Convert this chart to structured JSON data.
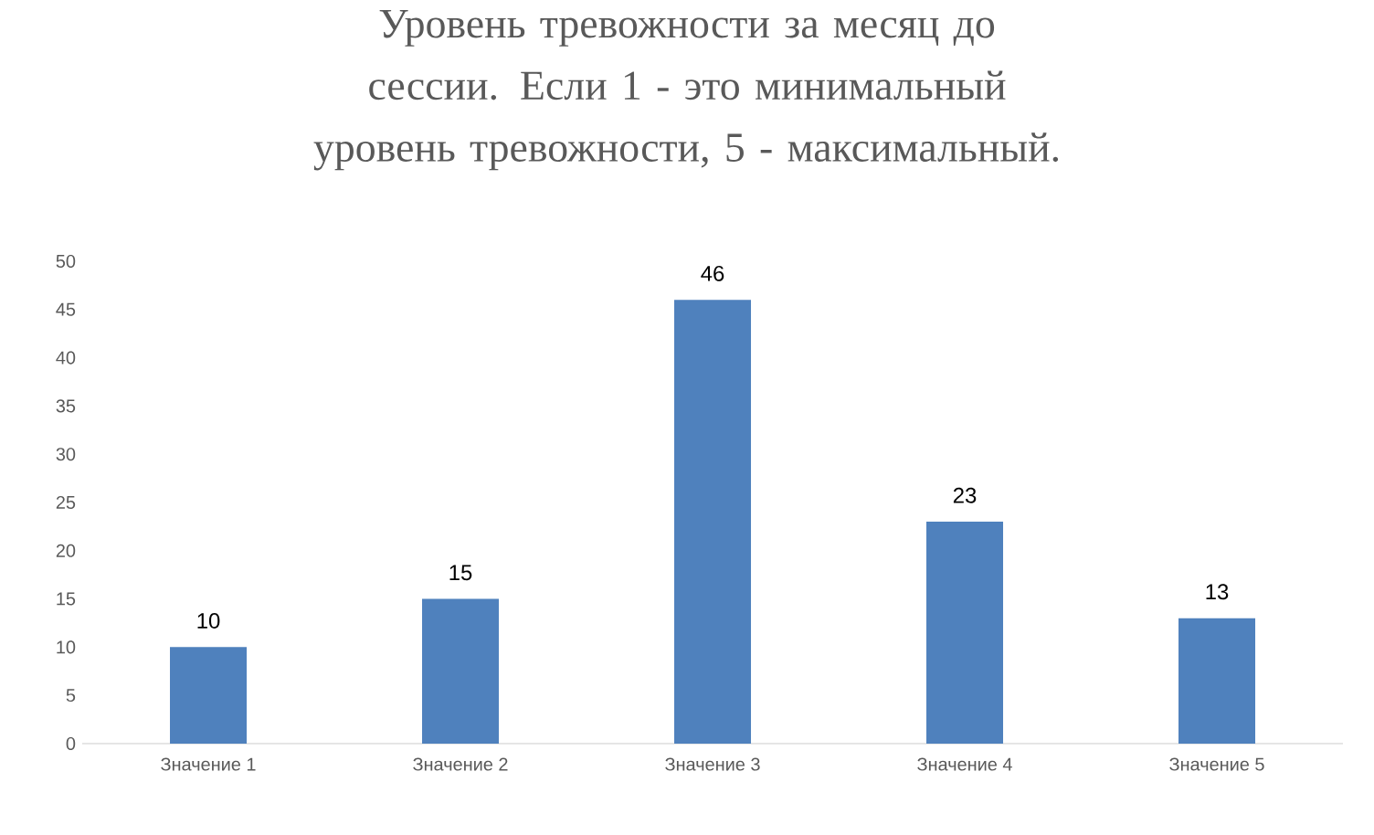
{
  "chart_data": {
    "type": "bar",
    "title": "Уровень тревожности за месяц до сессии. Если 1 - это минимальный уровень тревожности, 5 - максимальный.",
    "categories": [
      "Значение 1",
      "Значение 2",
      "Значение 3",
      "Значение 4",
      "Значение 5"
    ],
    "values": [
      10,
      15,
      46,
      23,
      13
    ],
    "color": "#4f81bd",
    "ylim": [
      0,
      50
    ],
    "yticks": [
      0,
      5,
      10,
      15,
      20,
      25,
      30,
      35,
      40,
      45,
      50
    ],
    "data_labels": true
  }
}
